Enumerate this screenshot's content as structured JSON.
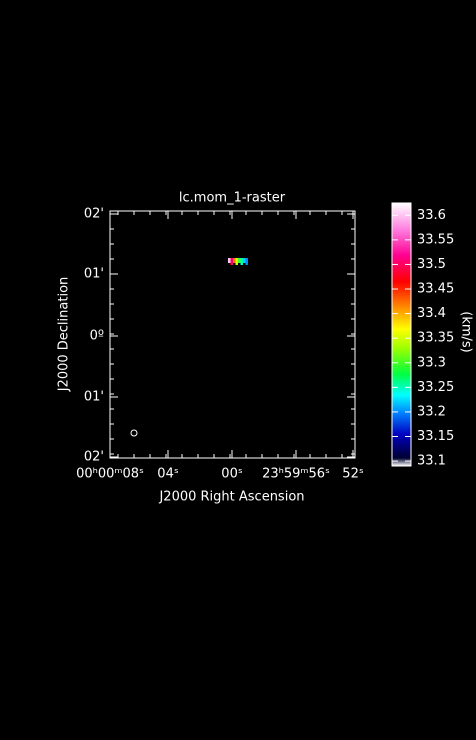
{
  "chart_data": {
    "type": "raster",
    "title": "lc.mom_1-raster",
    "x_label": "J2000 Right Ascension",
    "y_label": "J2000 Declination",
    "x_tick_labels": [
      "00ʰ00ᵐ08ˢ",
      "04ˢ",
      "00ˢ",
      "23ʰ59ᵐ56ˢ",
      "52ˢ"
    ],
    "y_tick_labels": [
      "02'",
      "01'",
      "0º",
      "01'",
      "02'"
    ],
    "pixel_values": [
      33.6,
      33.5,
      33.42,
      33.35,
      33.3,
      33.25,
      33.22,
      33.2
    ],
    "colorbar": {
      "label": "(km/s)",
      "lim": [
        33.09,
        33.625
      ],
      "ticks": [
        33.1,
        33.15,
        33.2,
        33.25,
        33.3,
        33.35,
        33.4,
        33.45,
        33.5,
        33.55,
        33.6
      ]
    }
  }
}
